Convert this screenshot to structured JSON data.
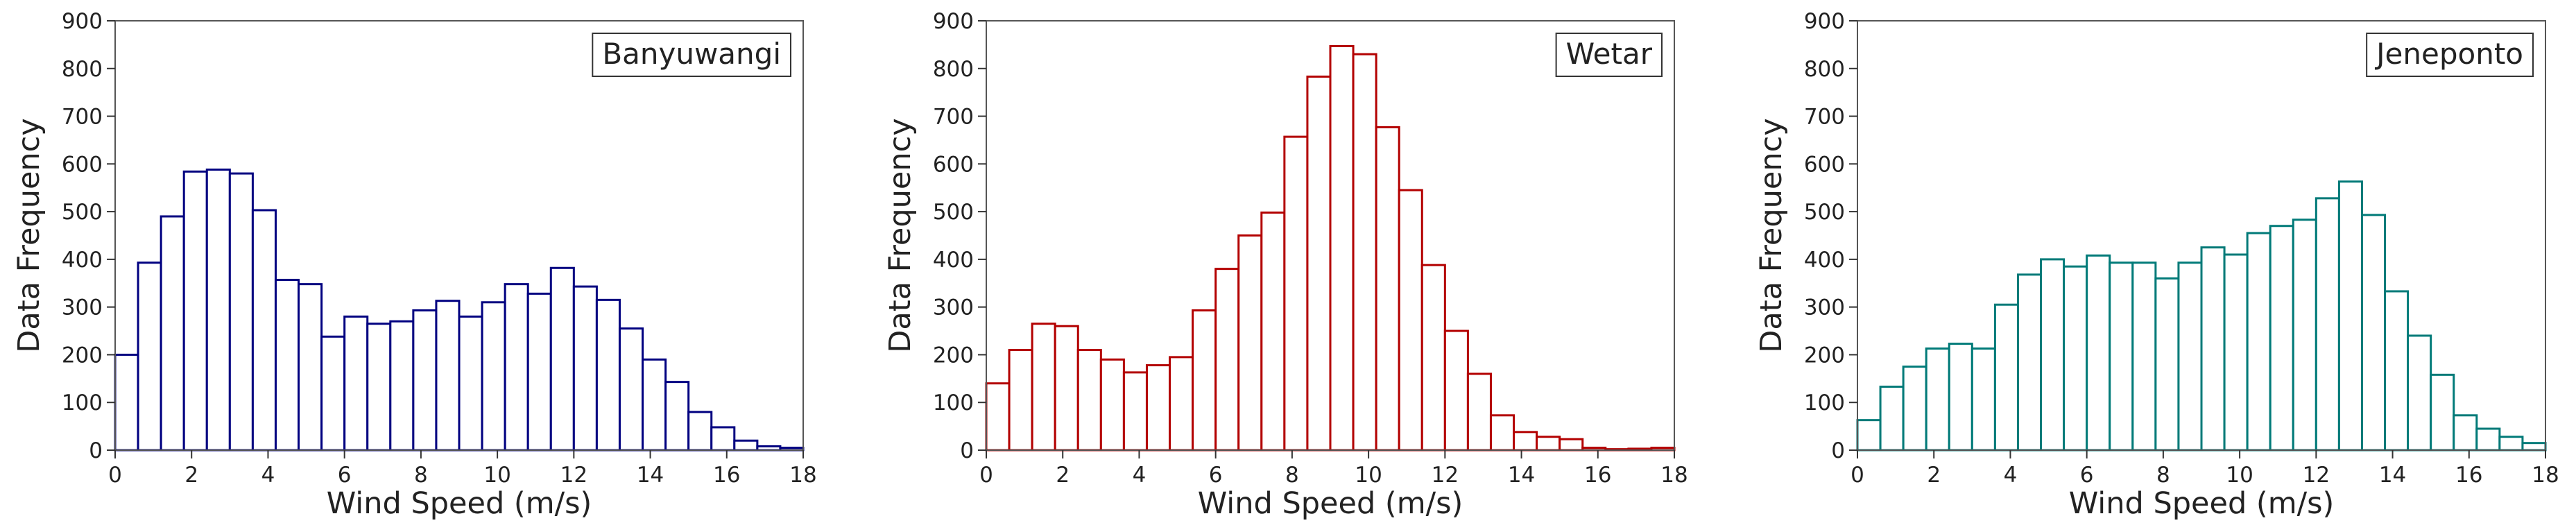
{
  "chart_data": [
    {
      "type": "bar",
      "panel_label": "Banyuwangi",
      "edge_color": "#000080",
      "bin_width": 0.6,
      "x_start": 0,
      "values": [
        200,
        393,
        490,
        584,
        588,
        580,
        503,
        357,
        348,
        238,
        280,
        265,
        270,
        293,
        313,
        280,
        310,
        348,
        328,
        382,
        343,
        315,
        255,
        190,
        143,
        80,
        48,
        20,
        8,
        5
      ],
      "xlabel": "Wind Speed (m/s)",
      "ylabel": "Data Frequency",
      "xlim": [
        0,
        18
      ],
      "ylim": [
        0,
        900
      ],
      "xticks": [
        0,
        2,
        4,
        6,
        8,
        10,
        12,
        14,
        16,
        18
      ],
      "yticks": [
        0,
        100,
        200,
        300,
        400,
        500,
        600,
        700,
        800,
        900
      ],
      "grid": false,
      "legend_position": "top-right"
    },
    {
      "type": "bar",
      "panel_label": "Wetar",
      "edge_color": "#b30000",
      "bin_width": 0.6,
      "x_start": 0,
      "values": [
        140,
        210,
        265,
        260,
        210,
        190,
        163,
        178,
        195,
        293,
        380,
        450,
        498,
        657,
        783,
        847,
        830,
        677,
        545,
        388,
        250,
        160,
        73,
        38,
        28,
        23,
        5,
        2,
        3,
        5
      ],
      "xlabel": "Wind Speed (m/s)",
      "ylabel": "Data Frequency",
      "xlim": [
        0,
        18
      ],
      "ylim": [
        0,
        900
      ],
      "xticks": [
        0,
        2,
        4,
        6,
        8,
        10,
        12,
        14,
        16,
        18
      ],
      "yticks": [
        0,
        100,
        200,
        300,
        400,
        500,
        600,
        700,
        800,
        900
      ],
      "grid": false,
      "legend_position": "top-right"
    },
    {
      "type": "bar",
      "panel_label": "Jeneponto",
      "edge_color": "#007a78",
      "bin_width": 0.6,
      "x_start": 0,
      "values": [
        63,
        133,
        175,
        213,
        223,
        213,
        305,
        368,
        400,
        385,
        408,
        393,
        393,
        360,
        393,
        425,
        410,
        455,
        470,
        483,
        528,
        563,
        493,
        333,
        240,
        158,
        73,
        45,
        28,
        15
      ],
      "xlabel": "Wind Speed (m/s)",
      "ylabel": "Data Frequency",
      "xlim": [
        0,
        18
      ],
      "ylim": [
        0,
        900
      ],
      "xticks": [
        0,
        2,
        4,
        6,
        8,
        10,
        12,
        14,
        16,
        18
      ],
      "yticks": [
        0,
        100,
        200,
        300,
        400,
        500,
        600,
        700,
        800,
        900
      ],
      "grid": false,
      "legend_position": "top-right"
    }
  ]
}
